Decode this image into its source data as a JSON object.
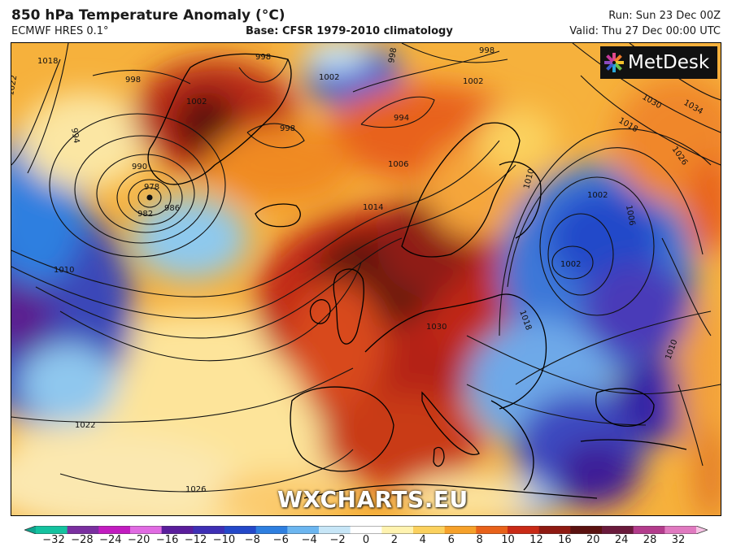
{
  "header": {
    "title": "850 hPa Temperature Anomaly (°C)",
    "model": "ECMWF HRES 0.1°",
    "base": "Base: CFSR 1979-2010 climatology",
    "run": "Run: Sun 23 Dec 00Z",
    "valid": "Valid: Thu 27 Dec 00:00 UTC"
  },
  "branding": {
    "logo_text": "MetDesk",
    "watermark": "WXCHARTS.EU"
  },
  "colorbar": {
    "tick_labels": [
      "−32",
      "−28",
      "−24",
      "−20",
      "−16",
      "−12",
      "−10",
      "−8",
      "−6",
      "−4",
      "−2",
      "0",
      "2",
      "4",
      "6",
      "8",
      "10",
      "12",
      "16",
      "20",
      "24",
      "28",
      "32"
    ],
    "colors": [
      "#0fa58f",
      "#14c29f",
      "#7a2fa0",
      "#c21bc0",
      "#e06be2",
      "#5a1d9c",
      "#3e2fb5",
      "#2448c9",
      "#2e7fe0",
      "#6cb6f0",
      "#c7e6f7",
      "#ffffff",
      "#fff3b0",
      "#fbd15e",
      "#f6a12a",
      "#e8621a",
      "#c92a16",
      "#8f1a12",
      "#5b1210",
      "#6a1a3c",
      "#b33c8c",
      "#e07ac0",
      "#f6c2e4"
    ]
  },
  "map": {
    "pressure_labels": [
      "1018",
      "1022",
      "994",
      "998",
      "1002",
      "998",
      "998",
      "1002",
      "998",
      "994",
      "998",
      "1002",
      "1006",
      "1014",
      "990",
      "978",
      "982",
      "986",
      "1010",
      "1002",
      "1010",
      "1006",
      "1002",
      "1018",
      "1030",
      "1026",
      "1030",
      "1034",
      "1018",
      "1022",
      "1026",
      "1010"
    ]
  }
}
